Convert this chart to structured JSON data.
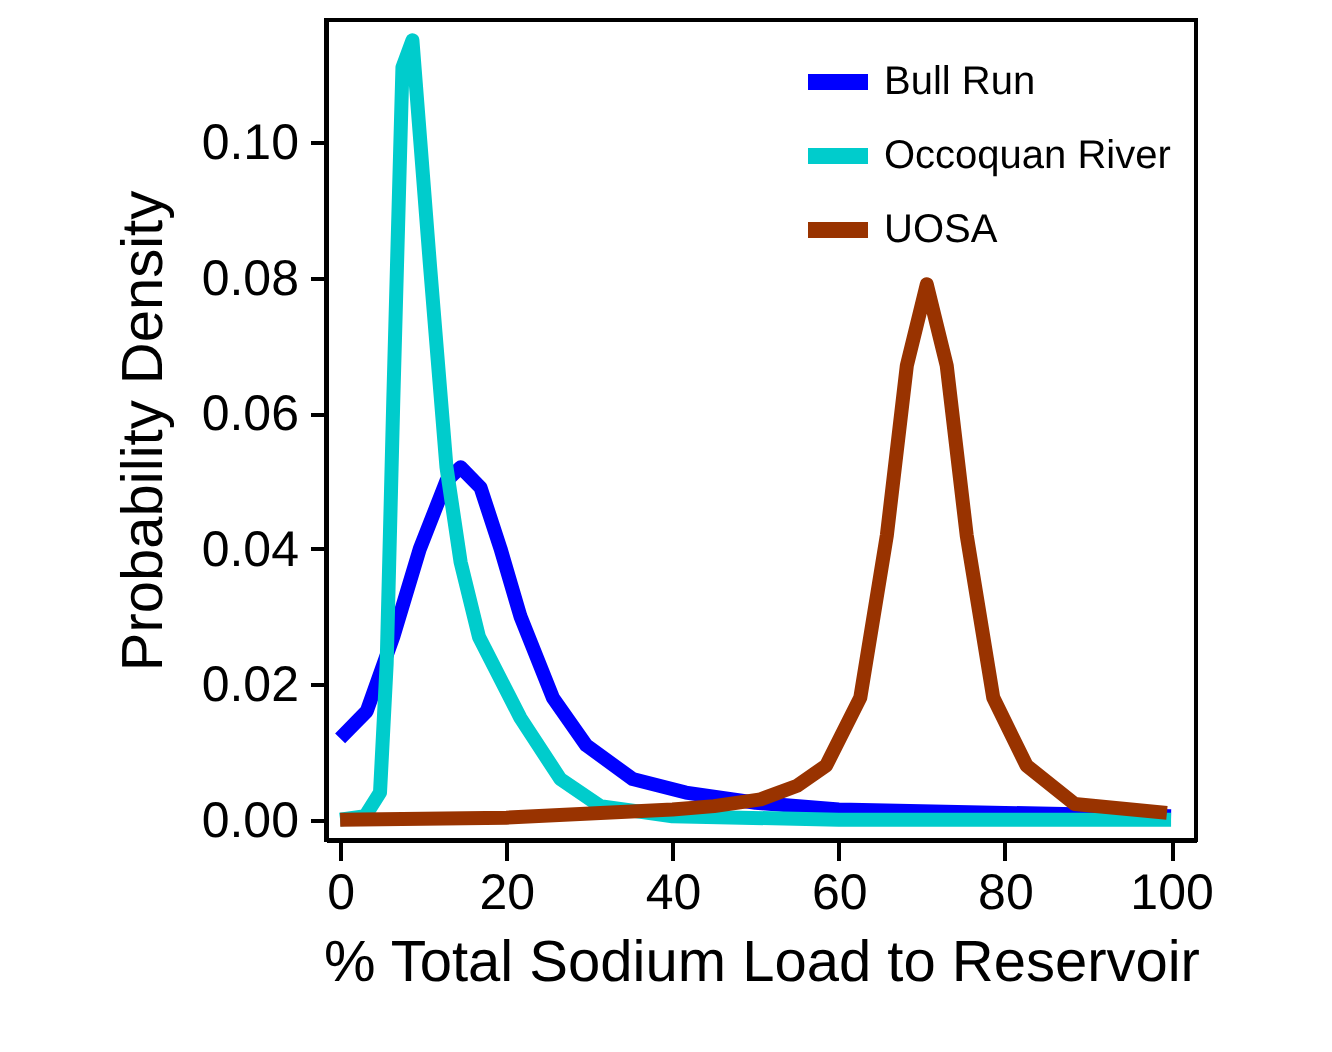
{
  "chart_data": {
    "type": "line",
    "xlabel": "% Total Sodium Load to Reservoir",
    "ylabel": "Probability Density",
    "xlim": [
      -1.7,
      103
    ],
    "ylim": [
      -0.003,
      0.118
    ],
    "xticks": [
      0,
      20,
      40,
      60,
      80,
      100
    ],
    "yticks": [
      {
        "value": 0,
        "label": "0.00"
      },
      {
        "value": 0.02,
        "label": "0.02"
      },
      {
        "value": 0.04,
        "label": "0.04"
      },
      {
        "value": 0.06,
        "label": "0.06"
      },
      {
        "value": 0.08,
        "label": "0.08"
      },
      {
        "value": 0.1,
        "label": "0.10"
      }
    ],
    "grid": false,
    "legend": "top right",
    "line_style": "solid",
    "marker": "none",
    "series": [
      {
        "name": "Bull Run",
        "color": "#0000ff",
        "x": [
          0,
          3.2,
          6.4,
          9.6,
          12.8,
          14.5,
          16.9,
          19.3,
          21.7,
          25.6,
          29.6,
          35.2,
          41.6,
          50,
          60,
          80,
          100
        ],
        "values": [
          0.012,
          0.016,
          0.027,
          0.04,
          0.05,
          0.052,
          0.049,
          0.04,
          0.03,
          0.018,
          0.011,
          0.006,
          0.004,
          0.0025,
          0.0015,
          0.001,
          0.0005
        ]
      },
      {
        "name": "Occoquan River",
        "color": "#00cccc",
        "x": [
          0,
          3,
          4.8,
          5.6,
          6.4,
          7.5,
          8.7,
          10.8,
          12.8,
          14.5,
          16.7,
          21.7,
          26.5,
          31.3,
          40,
          60,
          80,
          100
        ],
        "values": [
          0,
          0.0005,
          0.004,
          0.023,
          0.062,
          0.111,
          0.115,
          0.082,
          0.052,
          0.038,
          0.027,
          0.015,
          0.006,
          0.002,
          0.0005,
          0,
          0,
          0
        ]
      },
      {
        "name": "UOSA",
        "color": "#993300",
        "x": [
          0,
          20,
          40,
          45,
          50.6,
          55,
          58.5,
          62.6,
          65.8,
          68.2,
          70.6,
          73,
          75.4,
          78.6,
          82.6,
          88.4,
          99.5
        ],
        "values": [
          0,
          0.0003,
          0.0015,
          0.002,
          0.003,
          0.005,
          0.008,
          0.018,
          0.042,
          0.067,
          0.079,
          0.067,
          0.042,
          0.018,
          0.008,
          0.0023,
          0.001
        ]
      }
    ]
  }
}
